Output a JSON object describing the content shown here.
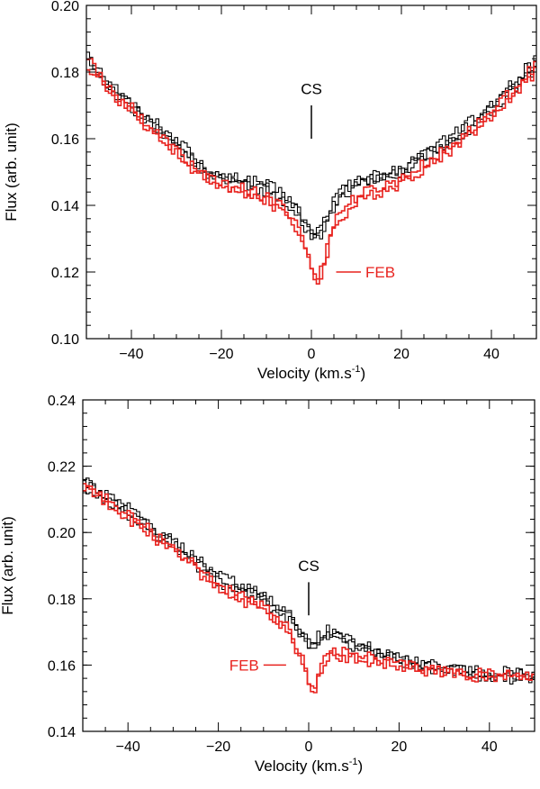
{
  "chart_data": [
    {
      "type": "line",
      "step": true,
      "xlabel": "Velocity (km.s",
      "xlabel_sup": "-1",
      "xlabel_suffix": ")",
      "ylabel": "Flux (arb. unit)",
      "xlim": [
        -50,
        50
      ],
      "ylim": [
        0.1,
        0.2
      ],
      "x_ticks": [
        -40,
        -20,
        0,
        20,
        40
      ],
      "x_tick_labels": [
        "−40",
        "−20",
        "0",
        "20",
        "40"
      ],
      "y_ticks": [
        0.1,
        0.12,
        0.14,
        0.16,
        0.18,
        0.2
      ],
      "y_tick_labels": [
        "0.10",
        "0.12",
        "0.14",
        "0.16",
        "0.18",
        "0.20"
      ],
      "annotations": {
        "cs_label": "CS",
        "cs_x": 0,
        "cs_tick_from": 0.16,
        "cs_tick_to": 0.17,
        "cs_text_y": 0.175,
        "feb_label": "FEB",
        "feb_y": 0.12
      },
      "series": [
        {
          "name": "spectrum-1",
          "color": "#000000",
          "x": [
            -50,
            -45,
            -40,
            -35,
            -30,
            -25,
            -20,
            -15,
            -10,
            -6,
            -4,
            -2,
            0,
            2,
            4,
            6,
            10,
            20,
            30,
            40,
            50
          ],
          "y": [
            0.184,
            0.176,
            0.17,
            0.164,
            0.158,
            0.152,
            0.148,
            0.148,
            0.146,
            0.143,
            0.14,
            0.136,
            0.131,
            0.134,
            0.14,
            0.144,
            0.148,
            0.151,
            0.159,
            0.169,
            0.184
          ]
        },
        {
          "name": "spectrum-2",
          "color": "#000000",
          "x": [
            -50,
            -45,
            -40,
            -35,
            -30,
            -25,
            -20,
            -15,
            -10,
            -6,
            -4,
            -2,
            0,
            2,
            4,
            6,
            10,
            20,
            30,
            40,
            50
          ],
          "y": [
            0.182,
            0.175,
            0.169,
            0.163,
            0.157,
            0.151,
            0.147,
            0.146,
            0.144,
            0.141,
            0.138,
            0.134,
            0.129,
            0.132,
            0.137,
            0.142,
            0.146,
            0.15,
            0.158,
            0.168,
            0.182
          ]
        },
        {
          "name": "spectrum-3",
          "color": "#000000",
          "x": [
            -50,
            -45,
            -40,
            -35,
            -30,
            -25,
            -20,
            -15,
            -10,
            -6,
            -4,
            -2,
            0,
            2,
            4,
            6,
            10,
            20,
            30,
            40,
            50
          ],
          "y": [
            0.185,
            0.177,
            0.171,
            0.165,
            0.159,
            0.153,
            0.149,
            0.147,
            0.145,
            0.142,
            0.139,
            0.135,
            0.13,
            0.133,
            0.139,
            0.143,
            0.147,
            0.151,
            0.16,
            0.17,
            0.185
          ]
        },
        {
          "name": "FEB-1",
          "color": "#e8231f",
          "x": [
            -50,
            -45,
            -40,
            -35,
            -30,
            -25,
            -20,
            -15,
            -10,
            -6,
            -4,
            -2,
            -1,
            0,
            1,
            2,
            3,
            4,
            6,
            10,
            20,
            30,
            40,
            50
          ],
          "y": [
            0.184,
            0.175,
            0.169,
            0.162,
            0.156,
            0.15,
            0.146,
            0.145,
            0.142,
            0.139,
            0.136,
            0.13,
            0.124,
            0.12,
            0.118,
            0.121,
            0.127,
            0.133,
            0.138,
            0.143,
            0.148,
            0.157,
            0.168,
            0.183
          ]
        },
        {
          "name": "FEB-2",
          "color": "#e8231f",
          "x": [
            -50,
            -45,
            -40,
            -35,
            -30,
            -25,
            -20,
            -15,
            -10,
            -6,
            -4,
            -2,
            -1,
            0,
            1,
            2,
            3,
            4,
            6,
            10,
            20,
            30,
            40,
            50
          ],
          "y": [
            0.182,
            0.174,
            0.168,
            0.161,
            0.155,
            0.149,
            0.145,
            0.144,
            0.141,
            0.138,
            0.134,
            0.128,
            0.123,
            0.119,
            0.117,
            0.119,
            0.125,
            0.131,
            0.136,
            0.141,
            0.147,
            0.156,
            0.167,
            0.181
          ]
        }
      ]
    },
    {
      "type": "line",
      "step": true,
      "xlabel": "Velocity (km.s",
      "xlabel_sup": "-1",
      "xlabel_suffix": ")",
      "ylabel": "Flux (arb. unit)",
      "xlim": [
        -50,
        50
      ],
      "ylim": [
        0.14,
        0.24
      ],
      "x_ticks": [
        -40,
        -20,
        0,
        20,
        40
      ],
      "x_tick_labels": [
        "−40",
        "−20",
        "0",
        "20",
        "40"
      ],
      "y_ticks": [
        0.14,
        0.16,
        0.18,
        0.2,
        0.22,
        0.24
      ],
      "y_tick_labels": [
        "0.14",
        "0.16",
        "0.18",
        "0.20",
        "0.22",
        "0.24"
      ],
      "annotations": {
        "cs_label": "CS",
        "cs_x": 0,
        "cs_tick_from": 0.175,
        "cs_tick_to": 0.185,
        "cs_text_y": 0.19,
        "feb_label": "FEB",
        "feb_y": 0.16
      },
      "series": [
        {
          "name": "spectrum-1",
          "color": "#000000",
          "x": [
            -50,
            -40,
            -30,
            -20,
            -10,
            -5,
            -2,
            0,
            2,
            5,
            10,
            20,
            30,
            40,
            50
          ],
          "y": [
            0.216,
            0.206,
            0.196,
            0.186,
            0.18,
            0.175,
            0.17,
            0.165,
            0.168,
            0.17,
            0.166,
            0.162,
            0.159,
            0.157,
            0.157
          ]
        },
        {
          "name": "spectrum-2",
          "color": "#000000",
          "x": [
            -50,
            -40,
            -30,
            -20,
            -10,
            -5,
            -2,
            0,
            2,
            5,
            10,
            20,
            30,
            40,
            50
          ],
          "y": [
            0.214,
            0.205,
            0.195,
            0.185,
            0.179,
            0.174,
            0.169,
            0.164,
            0.167,
            0.169,
            0.165,
            0.161,
            0.158,
            0.156,
            0.156
          ]
        },
        {
          "name": "spectrum-3",
          "color": "#000000",
          "x": [
            -50,
            -40,
            -30,
            -20,
            -10,
            -5,
            -2,
            0,
            2,
            5,
            10,
            20,
            30,
            40,
            50
          ],
          "y": [
            0.215,
            0.207,
            0.197,
            0.187,
            0.181,
            0.176,
            0.171,
            0.166,
            0.169,
            0.171,
            0.167,
            0.162,
            0.159,
            0.158,
            0.158
          ]
        },
        {
          "name": "FEB-1",
          "color": "#e8231f",
          "x": [
            -50,
            -40,
            -30,
            -20,
            -10,
            -5,
            -2,
            -1,
            0,
            1,
            2,
            3,
            5,
            10,
            20,
            30,
            40,
            50
          ],
          "y": [
            0.215,
            0.205,
            0.195,
            0.184,
            0.177,
            0.171,
            0.163,
            0.158,
            0.155,
            0.154,
            0.158,
            0.162,
            0.164,
            0.163,
            0.16,
            0.158,
            0.157,
            0.157
          ]
        },
        {
          "name": "FEB-2",
          "color": "#e8231f",
          "x": [
            -50,
            -40,
            -30,
            -20,
            -10,
            -5,
            -2,
            -1,
            0,
            1,
            2,
            3,
            5,
            10,
            20,
            30,
            40,
            50
          ],
          "y": [
            0.214,
            0.204,
            0.194,
            0.183,
            0.176,
            0.17,
            0.162,
            0.157,
            0.154,
            0.153,
            0.157,
            0.161,
            0.163,
            0.162,
            0.159,
            0.158,
            0.156,
            0.157
          ]
        }
      ]
    }
  ]
}
